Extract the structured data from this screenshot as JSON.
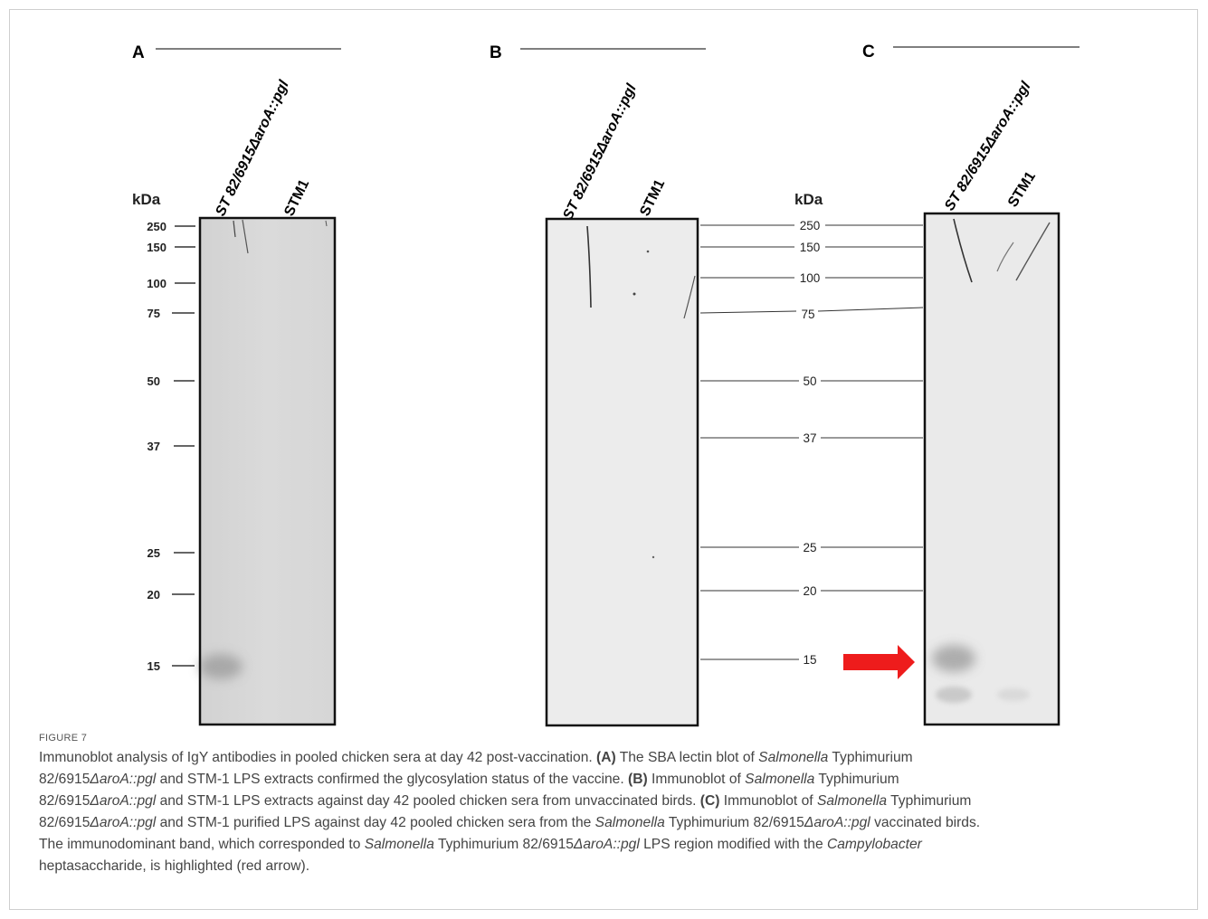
{
  "figure": {
    "label": "FIGURE 7",
    "panels": [
      {
        "letter": "A",
        "lanes": [
          "ST 82/6915ΔaroA::pgl",
          "STM1"
        ]
      },
      {
        "letter": "B",
        "lanes": [
          "ST 82/6915ΔaroA::pgl",
          "STM1"
        ]
      },
      {
        "letter": "C",
        "lanes": [
          "ST 82/6915ΔaroA::pgl",
          "STM1"
        ]
      }
    ],
    "marker_unit": "kDa",
    "markers": [
      "250",
      "150",
      "100",
      "75",
      "50",
      "37",
      "25",
      "20",
      "15"
    ],
    "highlight_color": "#ee1c1c"
  },
  "caption": {
    "s1": "Immunoblot analysis of IgY antibodies in pooled chicken sera at day 42 post-vaccination. ",
    "a_label": "(A)",
    "a1": " The SBA lectin blot of ",
    "salmonella": "Salmonella",
    "typhimurium": " Typhimurium",
    "strain_prefix": "82/6915",
    "strain_italic": "ΔaroA::pgl",
    "a2": " and STM-1 LPS extracts confirmed the glycosylation status of the vaccine. ",
    "b_label": "(B)",
    "b1": " Immunoblot of ",
    "b2": " and STM-1 LPS extracts against day 42 pooled chicken sera from unvaccinated birds. ",
    "c_label": "(C)",
    "c1": " Immunoblot of ",
    "c2": " and STM-1 purified LPS against day 42 pooled chicken sera from the ",
    "c3": " vaccinated birds.",
    "d1": "The immunodominant band, which corresponded to ",
    "d2": " LPS region modified with the ",
    "campylobacter": "Campylobacter",
    "d3": " heptasaccharide, is highlighted (red arrow)."
  }
}
